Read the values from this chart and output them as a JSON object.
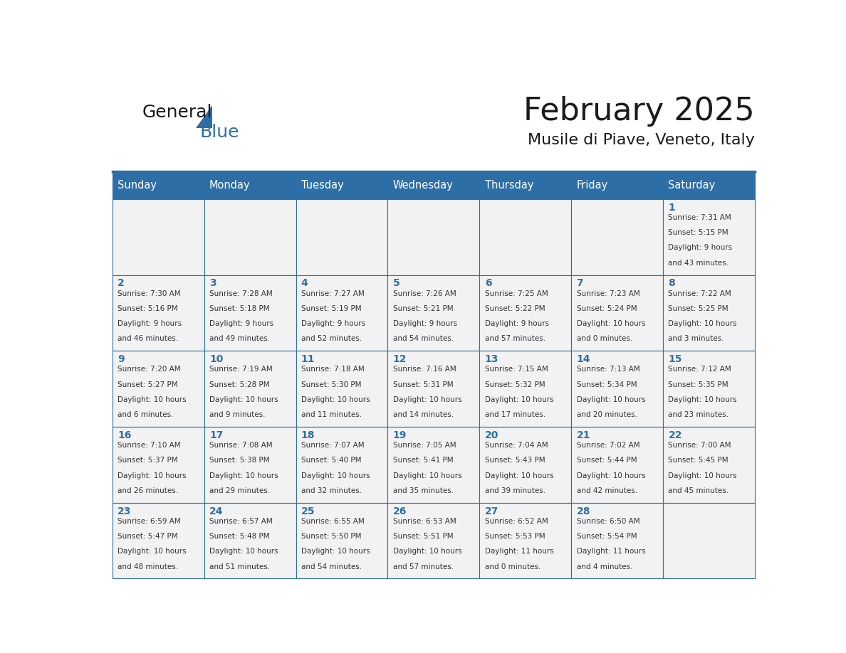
{
  "title": "February 2025",
  "subtitle": "Musile di Piave, Veneto, Italy",
  "header_bg": "#2E6EA6",
  "header_text_color": "#FFFFFF",
  "cell_bg_light": "#F2F2F2",
  "border_color": "#2E6EA6",
  "day_names": [
    "Sunday",
    "Monday",
    "Tuesday",
    "Wednesday",
    "Thursday",
    "Friday",
    "Saturday"
  ],
  "title_color": "#1a1a1a",
  "subtitle_color": "#1a1a1a",
  "day_number_color": "#2E6EA6",
  "cell_text_color": "#333333",
  "logo_general_color": "#1a1a1a",
  "logo_blue_color": "#2E6EA6",
  "weeks": [
    [
      {
        "day": null,
        "lines": []
      },
      {
        "day": null,
        "lines": []
      },
      {
        "day": null,
        "lines": []
      },
      {
        "day": null,
        "lines": []
      },
      {
        "day": null,
        "lines": []
      },
      {
        "day": null,
        "lines": []
      },
      {
        "day": 1,
        "lines": [
          "Sunrise: 7:31 AM",
          "Sunset: 5:15 PM",
          "Daylight: 9 hours",
          "and 43 minutes."
        ]
      }
    ],
    [
      {
        "day": 2,
        "lines": [
          "Sunrise: 7:30 AM",
          "Sunset: 5:16 PM",
          "Daylight: 9 hours",
          "and 46 minutes."
        ]
      },
      {
        "day": 3,
        "lines": [
          "Sunrise: 7:28 AM",
          "Sunset: 5:18 PM",
          "Daylight: 9 hours",
          "and 49 minutes."
        ]
      },
      {
        "day": 4,
        "lines": [
          "Sunrise: 7:27 AM",
          "Sunset: 5:19 PM",
          "Daylight: 9 hours",
          "and 52 minutes."
        ]
      },
      {
        "day": 5,
        "lines": [
          "Sunrise: 7:26 AM",
          "Sunset: 5:21 PM",
          "Daylight: 9 hours",
          "and 54 minutes."
        ]
      },
      {
        "day": 6,
        "lines": [
          "Sunrise: 7:25 AM",
          "Sunset: 5:22 PM",
          "Daylight: 9 hours",
          "and 57 minutes."
        ]
      },
      {
        "day": 7,
        "lines": [
          "Sunrise: 7:23 AM",
          "Sunset: 5:24 PM",
          "Daylight: 10 hours",
          "and 0 minutes."
        ]
      },
      {
        "day": 8,
        "lines": [
          "Sunrise: 7:22 AM",
          "Sunset: 5:25 PM",
          "Daylight: 10 hours",
          "and 3 minutes."
        ]
      }
    ],
    [
      {
        "day": 9,
        "lines": [
          "Sunrise: 7:20 AM",
          "Sunset: 5:27 PM",
          "Daylight: 10 hours",
          "and 6 minutes."
        ]
      },
      {
        "day": 10,
        "lines": [
          "Sunrise: 7:19 AM",
          "Sunset: 5:28 PM",
          "Daylight: 10 hours",
          "and 9 minutes."
        ]
      },
      {
        "day": 11,
        "lines": [
          "Sunrise: 7:18 AM",
          "Sunset: 5:30 PM",
          "Daylight: 10 hours",
          "and 11 minutes."
        ]
      },
      {
        "day": 12,
        "lines": [
          "Sunrise: 7:16 AM",
          "Sunset: 5:31 PM",
          "Daylight: 10 hours",
          "and 14 minutes."
        ]
      },
      {
        "day": 13,
        "lines": [
          "Sunrise: 7:15 AM",
          "Sunset: 5:32 PM",
          "Daylight: 10 hours",
          "and 17 minutes."
        ]
      },
      {
        "day": 14,
        "lines": [
          "Sunrise: 7:13 AM",
          "Sunset: 5:34 PM",
          "Daylight: 10 hours",
          "and 20 minutes."
        ]
      },
      {
        "day": 15,
        "lines": [
          "Sunrise: 7:12 AM",
          "Sunset: 5:35 PM",
          "Daylight: 10 hours",
          "and 23 minutes."
        ]
      }
    ],
    [
      {
        "day": 16,
        "lines": [
          "Sunrise: 7:10 AM",
          "Sunset: 5:37 PM",
          "Daylight: 10 hours",
          "and 26 minutes."
        ]
      },
      {
        "day": 17,
        "lines": [
          "Sunrise: 7:08 AM",
          "Sunset: 5:38 PM",
          "Daylight: 10 hours",
          "and 29 minutes."
        ]
      },
      {
        "day": 18,
        "lines": [
          "Sunrise: 7:07 AM",
          "Sunset: 5:40 PM",
          "Daylight: 10 hours",
          "and 32 minutes."
        ]
      },
      {
        "day": 19,
        "lines": [
          "Sunrise: 7:05 AM",
          "Sunset: 5:41 PM",
          "Daylight: 10 hours",
          "and 35 minutes."
        ]
      },
      {
        "day": 20,
        "lines": [
          "Sunrise: 7:04 AM",
          "Sunset: 5:43 PM",
          "Daylight: 10 hours",
          "and 39 minutes."
        ]
      },
      {
        "day": 21,
        "lines": [
          "Sunrise: 7:02 AM",
          "Sunset: 5:44 PM",
          "Daylight: 10 hours",
          "and 42 minutes."
        ]
      },
      {
        "day": 22,
        "lines": [
          "Sunrise: 7:00 AM",
          "Sunset: 5:45 PM",
          "Daylight: 10 hours",
          "and 45 minutes."
        ]
      }
    ],
    [
      {
        "day": 23,
        "lines": [
          "Sunrise: 6:59 AM",
          "Sunset: 5:47 PM",
          "Daylight: 10 hours",
          "and 48 minutes."
        ]
      },
      {
        "day": 24,
        "lines": [
          "Sunrise: 6:57 AM",
          "Sunset: 5:48 PM",
          "Daylight: 10 hours",
          "and 51 minutes."
        ]
      },
      {
        "day": 25,
        "lines": [
          "Sunrise: 6:55 AM",
          "Sunset: 5:50 PM",
          "Daylight: 10 hours",
          "and 54 minutes."
        ]
      },
      {
        "day": 26,
        "lines": [
          "Sunrise: 6:53 AM",
          "Sunset: 5:51 PM",
          "Daylight: 10 hours",
          "and 57 minutes."
        ]
      },
      {
        "day": 27,
        "lines": [
          "Sunrise: 6:52 AM",
          "Sunset: 5:53 PM",
          "Daylight: 11 hours",
          "and 0 minutes."
        ]
      },
      {
        "day": 28,
        "lines": [
          "Sunrise: 6:50 AM",
          "Sunset: 5:54 PM",
          "Daylight: 11 hours",
          "and 4 minutes."
        ]
      },
      {
        "day": null,
        "lines": []
      }
    ]
  ]
}
